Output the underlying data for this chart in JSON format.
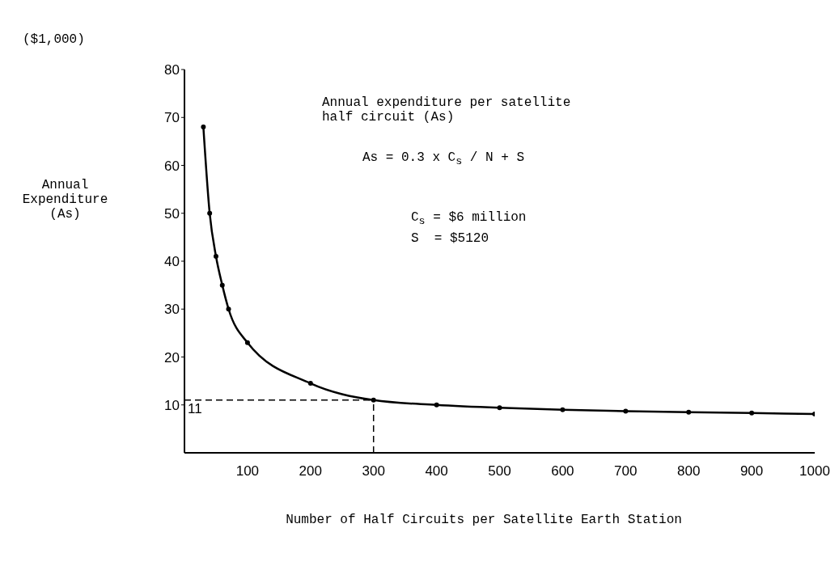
{
  "chart_data": {
    "type": "line",
    "xlabel": "Number of Half Circuits per Satellite Earth Station",
    "ylabel": "Annual Expenditure (As)",
    "annotations": [
      "($1,000)",
      "Annual expenditure per satellite half circuit (As)",
      "As = 0.3 x C$_{s}$ / N + S",
      "C$_{s}$ = $6 million",
      "S  = $5120"
    ],
    "x": [
      30,
      40,
      50,
      60,
      70,
      100,
      200,
      300,
      400,
      500,
      600,
      700,
      800,
      900,
      1000
    ],
    "series": [
      {
        "color": "#000000",
        "values": [
          68,
          50,
          41,
          35,
          30,
          23,
          14.5,
          11,
          10,
          9.4,
          9,
          8.7,
          8.5,
          8.3,
          8.1
        ]
      }
    ],
    "xlim": [
      0,
      1000
    ],
    "xticks": [
      100,
      200,
      300,
      400,
      500,
      600,
      700,
      800,
      900,
      1000
    ],
    "ylim": [
      0,
      80
    ],
    "yticks": [
      10,
      20,
      30,
      40,
      50,
      60,
      70,
      80
    ],
    "ref_lines": [
      {
        "axis": "y",
        "value": 11,
        "label": "11",
        "line_style": "dashed"
      },
      {
        "axis": "x",
        "value": 300,
        "label": null,
        "line_style": "dashed"
      }
    ],
    "grid": false,
    "legend": false,
    "marker": "circle",
    "line_style": "solid"
  }
}
